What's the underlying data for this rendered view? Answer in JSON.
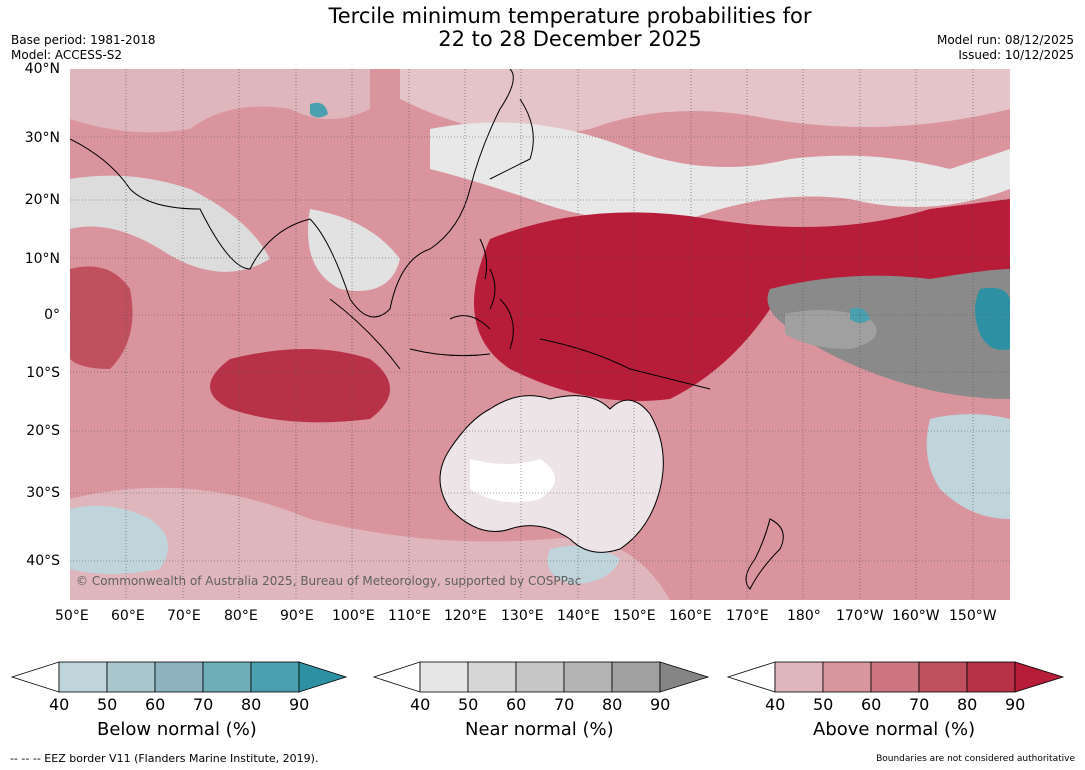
{
  "title_line1": "Tercile minimum temperature probabilities for",
  "title_line2": "22 to 28 December 2025",
  "meta_left": [
    "Base period: 1981-2018",
    "Model: ACCESS-S2"
  ],
  "meta_right": [
    "Model run: 08/12/2025",
    "Issued: 10/12/2025"
  ],
  "copyright": "© Commonwealth of Australia 2025, Bureau of Meteorology, supported by COSPPac",
  "lat_labels": [
    "40°N",
    "30°N",
    "20°N",
    "10°N",
    "0°",
    "10°S",
    "20°S",
    "30°S",
    "40°S"
  ],
  "lon_labels": [
    "50°E",
    "60°E",
    "70°E",
    "80°E",
    "90°E",
    "100°E",
    "110°E",
    "120°E",
    "130°E",
    "140°E",
    "150°E",
    "160°E",
    "170°E",
    "180°",
    "170°W",
    "160°W",
    "150°W"
  ],
  "colorbars": [
    {
      "title": "Below normal (%)",
      "ticks": [
        "40",
        "50",
        "60",
        "70",
        "80",
        "90"
      ],
      "colors": [
        "#ffffff",
        "#bfd4db",
        "#a7c7cc",
        "#8db3c0",
        "#6eaeb8",
        "#4aa0ae",
        "#2e91a3"
      ]
    },
    {
      "title": "Near normal (%)",
      "ticks": [
        "40",
        "50",
        "60",
        "70",
        "80",
        "90"
      ],
      "colors": [
        "#ffffff",
        "#e6e6e6",
        "#d6d6d6",
        "#c6c6c6",
        "#b4b4b4",
        "#a0a0a0",
        "#858585"
      ]
    },
    {
      "title": "Above normal (%)",
      "ticks": [
        "40",
        "50",
        "60",
        "70",
        "80",
        "90"
      ],
      "colors": [
        "#ffffff",
        "#e0b6bd",
        "#d8979f",
        "#cc7480",
        "#c1505f",
        "#b83247",
        "#b71c38"
      ]
    }
  ],
  "eez_note": "--  --  -- EEZ border V11 (Flanders Marine Institute, 2019).",
  "boundaries_note": "Boundaries are not considered authoritative"
}
